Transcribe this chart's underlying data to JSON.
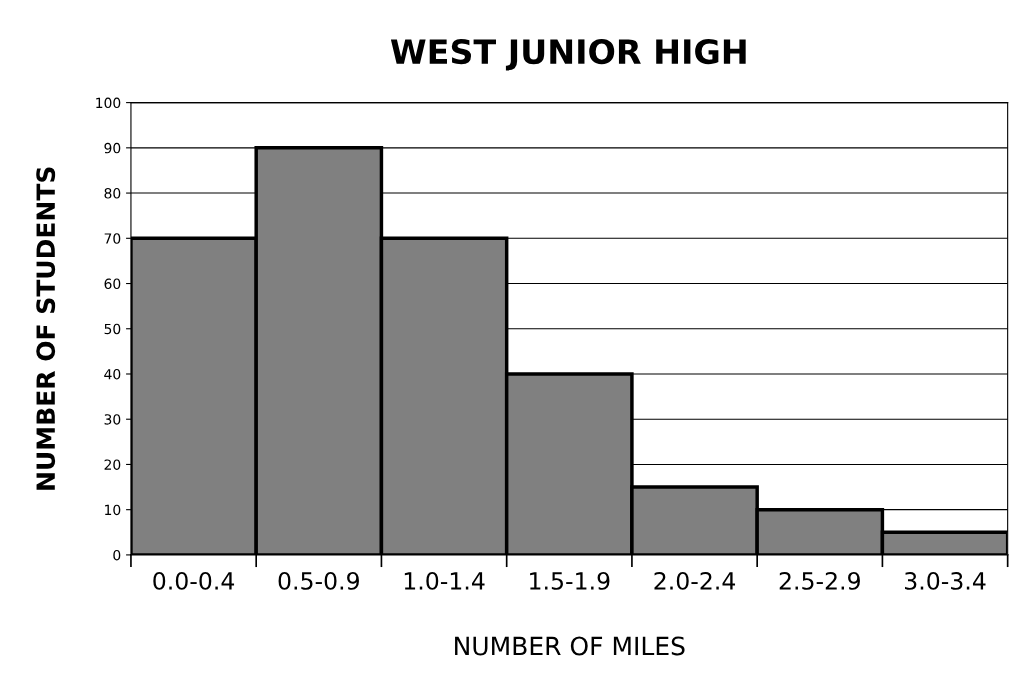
{
  "chart_data": {
    "type": "bar",
    "title": "WEST JUNIOR HIGH",
    "xlabel": "NUMBER OF MILES",
    "ylabel": "NUMBER OF STUDENTS",
    "categories": [
      "0.0-0.4",
      "0.5-0.9",
      "1.0-1.4",
      "1.5-1.9",
      "2.0-2.4",
      "2.5-2.9",
      "3.0-3.4"
    ],
    "values": [
      70,
      90,
      70,
      40,
      15,
      10,
      5
    ],
    "color": "#808080",
    "ylim": [
      0,
      100
    ],
    "yticks": [
      0,
      10,
      20,
      30,
      40,
      50,
      60,
      70,
      80,
      90,
      100
    ],
    "grid": "y"
  }
}
